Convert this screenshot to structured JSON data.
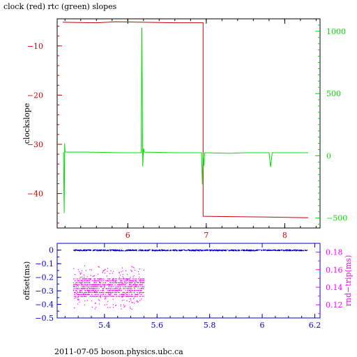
{
  "title": "clock (red) rtc (green) slopes",
  "footer": "2011-07-05  boson.physics.ubc.ca",
  "colors": {
    "clock": "#cc0000",
    "rtc": "#00dd00",
    "offset": "#0000cc",
    "rndtrip": "#ff00ff",
    "axis": "#000000"
  },
  "chart_data": [
    {
      "type": "line",
      "ylabel": "clockslope",
      "y2label": "",
      "xlim": [
        5.1,
        8.45
      ],
      "ylim": [
        -47,
        -4.5
      ],
      "y2lim": [
        -580,
        1100
      ],
      "xticks": [
        6,
        7,
        8
      ],
      "xtick_labels": [
        "6",
        "7",
        "8"
      ],
      "yticks": [
        -10,
        -20,
        -30,
        -40
      ],
      "ytick_labels": [
        "−10",
        "−20",
        "−30",
        "−40"
      ],
      "y2ticks": [
        1000,
        500,
        0,
        -500
      ],
      "y2tick_labels": [
        "1000",
        "500",
        "0",
        "−500"
      ],
      "series": [
        {
          "axis": "left",
          "color": "#cc0000",
          "points": [
            [
              5.17,
              -5.2
            ],
            [
              5.6,
              -5.3
            ],
            [
              5.85,
              -5.1
            ],
            [
              6.2,
              -5.2
            ],
            [
              6.6,
              -5.3
            ],
            [
              6.96,
              -5.3
            ],
            [
              6.96,
              -44.6
            ],
            [
              7.4,
              -44.7
            ],
            [
              7.9,
              -44.8
            ],
            [
              8.3,
              -44.9
            ]
          ]
        },
        {
          "axis": "right",
          "color": "#00dd00",
          "points": [
            [
              5.17,
              25
            ],
            [
              5.18,
              25
            ],
            [
              5.19,
              -460
            ],
            [
              5.195,
              100
            ],
            [
              5.2,
              30
            ],
            [
              5.5,
              30
            ],
            [
              5.9,
              25
            ],
            [
              6.17,
              25
            ],
            [
              6.18,
              1030
            ],
            [
              6.19,
              -85
            ],
            [
              6.2,
              60
            ],
            [
              6.21,
              30
            ],
            [
              6.6,
              25
            ],
            [
              6.94,
              25
            ],
            [
              6.95,
              -230
            ],
            [
              6.96,
              20
            ],
            [
              6.97,
              -80
            ],
            [
              6.98,
              25
            ],
            [
              7.3,
              20
            ],
            [
              7.5,
              25
            ],
            [
              7.8,
              25
            ],
            [
              7.82,
              -90
            ],
            [
              7.84,
              25
            ],
            [
              8.3,
              25
            ]
          ]
        }
      ]
    },
    {
      "type": "scatter",
      "ylabel": "offset(ms)",
      "y2label": "rnd−trip(ms)",
      "xlim": [
        5.22,
        6.22
      ],
      "ylim": [
        -0.5,
        0.05
      ],
      "y2lim": [
        0.105,
        0.19
      ],
      "xticks": [
        5.4,
        5.6,
        5.8,
        6,
        6.2
      ],
      "xtick_labels": [
        "5.4",
        "5.6",
        "5.8",
        "6",
        "6.2"
      ],
      "yticks": [
        0,
        -0.1,
        -0.2,
        -0.3,
        -0.4,
        -0.5
      ],
      "ytick_labels": [
        "0",
        "−0.1",
        "−0.2",
        "−0.3",
        "−0.4",
        "−0.5"
      ],
      "y2ticks": [
        0.18,
        0.16,
        0.14,
        0.12
      ],
      "y2tick_labels": [
        "0.18",
        "0.16",
        "0.14",
        "0.12"
      ],
      "series": [
        {
          "axis": "left",
          "color": "#0000cc",
          "x_range": [
            5.28,
            6.17
          ],
          "y_center": 0.002,
          "y_spread": 0.008
        },
        {
          "axis": "right",
          "color": "#ff00ff",
          "x_range": [
            5.28,
            5.55
          ],
          "y_band": [
            0.13,
            0.15
          ],
          "y_extent": [
            0.115,
            0.165
          ]
        }
      ]
    }
  ]
}
